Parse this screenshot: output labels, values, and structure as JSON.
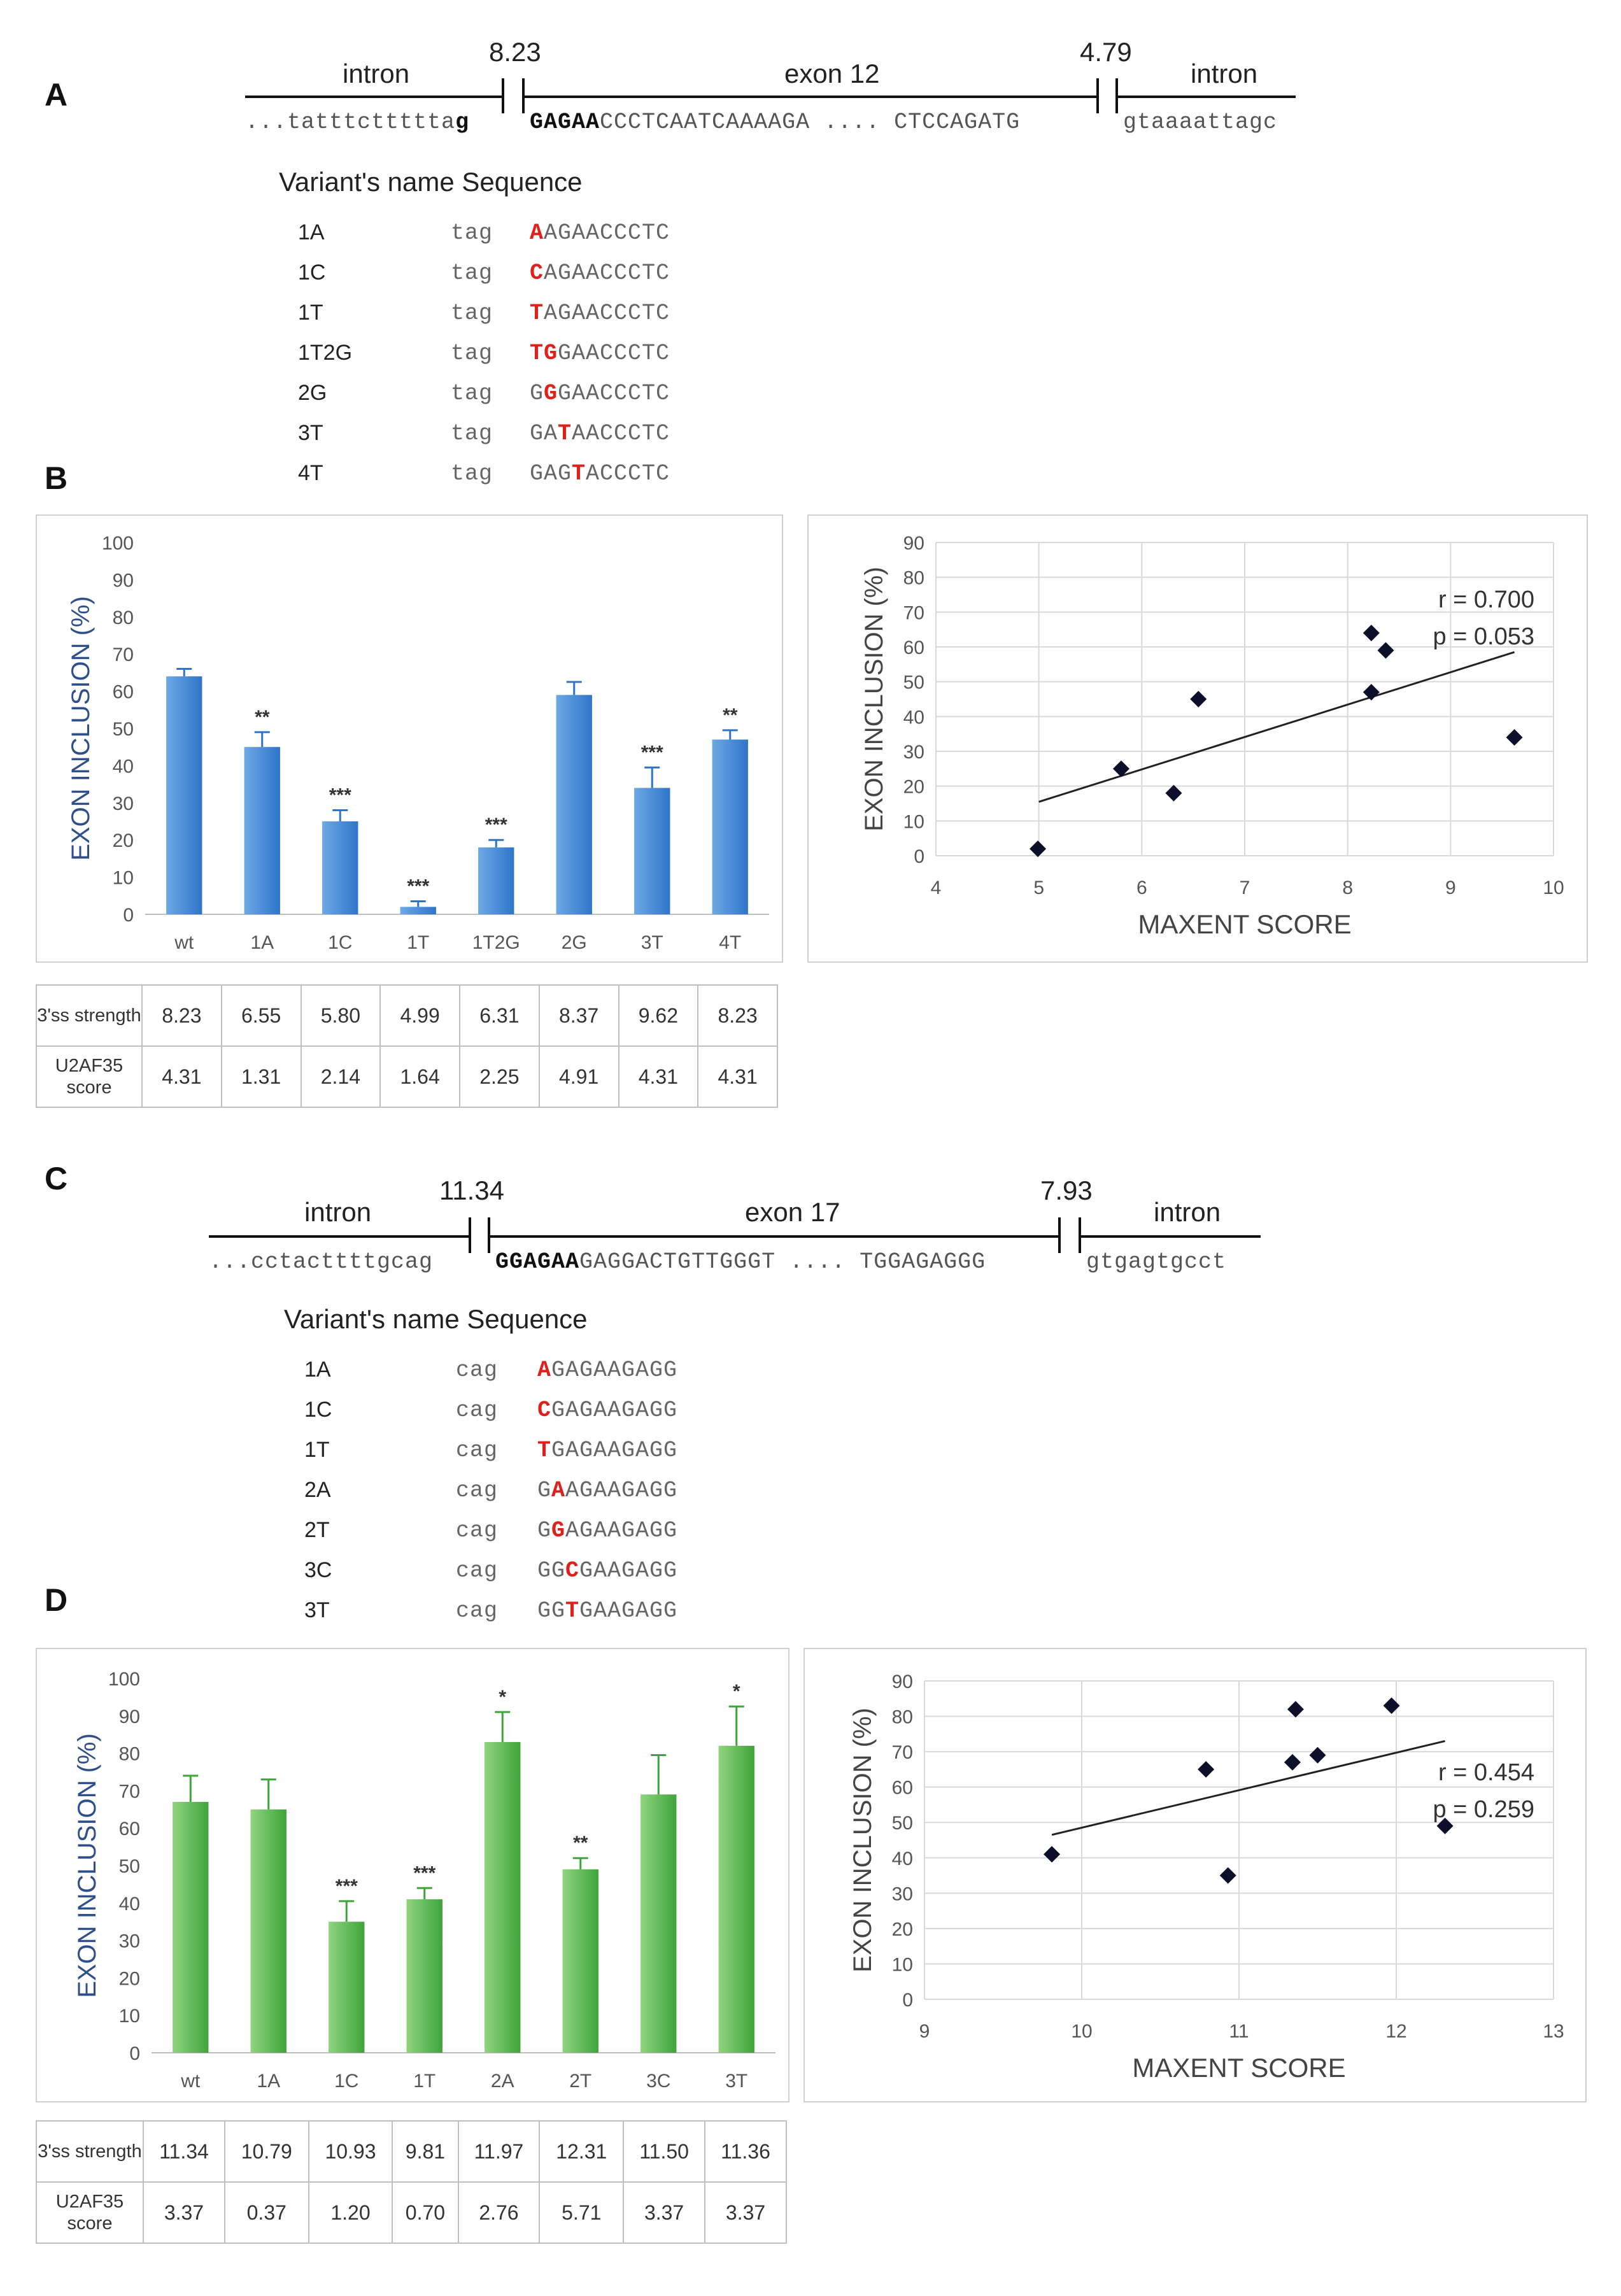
{
  "panels": {
    "A": {
      "letter": "A",
      "diagram": {
        "left_label": "intron",
        "left_score": "8.23",
        "exon_label": "exon 12",
        "right_score": "4.79",
        "right_label": "intron",
        "seq_left": "...tatttcttttta",
        "seq_left_bold": "g",
        "seq_exon_bold": "GAGAA",
        "seq_exon": "CCCTCAATCAAAAGA .... CTCCAGATG",
        "seq_right": "gtaaaattagc"
      },
      "variant_header": "Variant's name Sequence",
      "variants": [
        {
          "name": "1A",
          "prefix": "tag",
          "pre": "",
          "mut": "A",
          "post": "AGAACCCTC"
        },
        {
          "name": "1C",
          "prefix": "tag",
          "pre": "",
          "mut": "C",
          "post": "AGAACCCTC"
        },
        {
          "name": "1T",
          "prefix": "tag",
          "pre": "",
          "mut": "T",
          "post": "AGAACCCTC"
        },
        {
          "name": "1T2G",
          "prefix": "tag",
          "pre": "",
          "mut": "TG",
          "post": "GAACCCTC"
        },
        {
          "name": "2G",
          "prefix": "tag",
          "pre": "G",
          "mut": "G",
          "post": "GAACCCTC"
        },
        {
          "name": "3T",
          "prefix": "tag",
          "pre": "GA",
          "mut": "T",
          "post": "AACCCTC"
        },
        {
          "name": "4T",
          "prefix": "tag",
          "pre": "GAG",
          "mut": "T",
          "post": "ACCCTC"
        }
      ]
    },
    "B": {
      "letter": "B",
      "table": {
        "row1_label": "3'ss strength",
        "row2_label": "U2AF35 score",
        "strength": [
          "8.23",
          "6.55",
          "5.80",
          "4.99",
          "6.31",
          "8.37",
          "9.62",
          "8.23"
        ],
        "u2af35": [
          "4.31",
          "1.31",
          "2.14",
          "1.64",
          "2.25",
          "4.91",
          "4.31",
          "4.31"
        ]
      }
    },
    "C": {
      "letter": "C",
      "diagram": {
        "left_label": "intron",
        "left_score": "11.34",
        "exon_label": "exon 17",
        "right_score": "7.93",
        "right_label": "intron",
        "seq_left": "...cctacttttgcag",
        "seq_left_bold": "",
        "seq_exon_bold": "GGAGAA",
        "seq_exon": "GAGGACTGTTGGGT .... TGGAGAGGG",
        "seq_right": "gtgagtgcct"
      },
      "variant_header": "Variant's name Sequence",
      "variants": [
        {
          "name": "1A",
          "prefix": "cag",
          "pre": "",
          "mut": "A",
          "post": "GAGAAGAGG"
        },
        {
          "name": "1C",
          "prefix": "cag",
          "pre": "",
          "mut": "C",
          "post": "GAGAAGAGG"
        },
        {
          "name": "1T",
          "prefix": "cag",
          "pre": "",
          "mut": "T",
          "post": "GAGAAGAGG"
        },
        {
          "name": "2A",
          "prefix": "cag",
          "pre": "G",
          "mut": "A",
          "post": "AGAAGAGG"
        },
        {
          "name": "2T",
          "prefix": "cag",
          "pre": "G",
          "mut": "G",
          "post": "AGAAGAGG"
        },
        {
          "name": "3C",
          "prefix": "cag",
          "pre": "GG",
          "mut": "C",
          "post": "GAAGAGG"
        },
        {
          "name": "3T",
          "prefix": "cag",
          "pre": "GG",
          "mut": "T",
          "post": "GAAGAGG"
        }
      ]
    },
    "D": {
      "letter": "D",
      "table": {
        "row1_label": "3'ss strength",
        "row2_label": "U2AF35 score",
        "strength": [
          "11.34",
          "10.79",
          "10.93",
          "9.81",
          "11.97",
          "12.31",
          "11.50",
          "11.36"
        ],
        "u2af35": [
          "3.37",
          "0.37",
          "1.20",
          "0.70",
          "2.76",
          "5.71",
          "3.37",
          "3.37"
        ]
      }
    }
  },
  "chart_data": [
    {
      "id": "B-bar",
      "type": "bar",
      "categories": [
        "wt",
        "1A",
        "1C",
        "1T",
        "1T2G",
        "2G",
        "3T",
        "4T"
      ],
      "values": [
        64,
        45,
        25,
        2,
        18,
        59,
        34,
        47
      ],
      "errors": [
        2,
        4,
        3,
        1.5,
        2,
        3.5,
        5.5,
        2.5
      ],
      "significance": [
        "",
        "**",
        "***",
        "***",
        "***",
        "",
        "***",
        "**"
      ],
      "ylabel": "EXON INCLUSION (%)",
      "xlabel": "",
      "ylim": [
        0,
        100
      ],
      "yticks": [
        0,
        10,
        20,
        30,
        40,
        50,
        60,
        70,
        80,
        90,
        100
      ],
      "color": "#2e75c9",
      "color_light": "#6ea8e6"
    },
    {
      "id": "B-scatter",
      "type": "scatter",
      "x": [
        8.23,
        6.55,
        5.8,
        4.99,
        6.31,
        8.37,
        9.62,
        8.23
      ],
      "y": [
        64,
        45,
        25,
        2,
        18,
        59,
        34,
        47
      ],
      "xlabel": "MAXENT SCORE",
      "ylabel": "EXON INCLUSION (%)",
      "xlim": [
        4,
        10
      ],
      "ylim": [
        0,
        90
      ],
      "xticks": [
        4,
        5,
        6,
        7,
        8,
        9,
        10
      ],
      "yticks": [
        0,
        10,
        20,
        30,
        40,
        50,
        60,
        70,
        80,
        90
      ],
      "trend": {
        "x1": 5,
        "y1": 15.5,
        "x2": 9.62,
        "y2": 58.5
      },
      "annot_r": "r = 0.700",
      "annot_p": "p = 0.053",
      "grid": true
    },
    {
      "id": "D-bar",
      "type": "bar",
      "categories": [
        "wt",
        "1A",
        "1C",
        "1T",
        "2A",
        "2T",
        "3C",
        "3T"
      ],
      "values": [
        67,
        65,
        35,
        41,
        83,
        49,
        69,
        82
      ],
      "errors": [
        7,
        8,
        5.5,
        3,
        8,
        3,
        10.5,
        10.5
      ],
      "significance": [
        "",
        "",
        "***",
        "***",
        "*",
        "**",
        "",
        "*"
      ],
      "ylabel": "EXON INCLUSION (%)",
      "xlabel": "",
      "ylim": [
        0,
        100
      ],
      "yticks": [
        0,
        10,
        20,
        30,
        40,
        50,
        60,
        70,
        80,
        90,
        100
      ],
      "color": "#3fa43a",
      "color_light": "#8fd47f"
    },
    {
      "id": "D-scatter",
      "type": "scatter",
      "x": [
        11.34,
        10.79,
        10.93,
        9.81,
        11.97,
        12.31,
        11.5,
        11.36
      ],
      "y": [
        67,
        65,
        35,
        41,
        83,
        49,
        69,
        82
      ],
      "xlabel": "MAXENT SCORE",
      "ylabel": "EXON INCLUSION (%)",
      "xlim": [
        9,
        13
      ],
      "ylim": [
        0,
        90
      ],
      "xticks": [
        9,
        10,
        11,
        12,
        13
      ],
      "yticks": [
        0,
        10,
        20,
        30,
        40,
        50,
        60,
        70,
        80,
        90
      ],
      "trend": {
        "x1": 9.81,
        "y1": 46.5,
        "x2": 12.31,
        "y2": 73
      },
      "annot_r": "r = 0.454",
      "annot_p": "p = 0.259",
      "grid": true
    }
  ]
}
